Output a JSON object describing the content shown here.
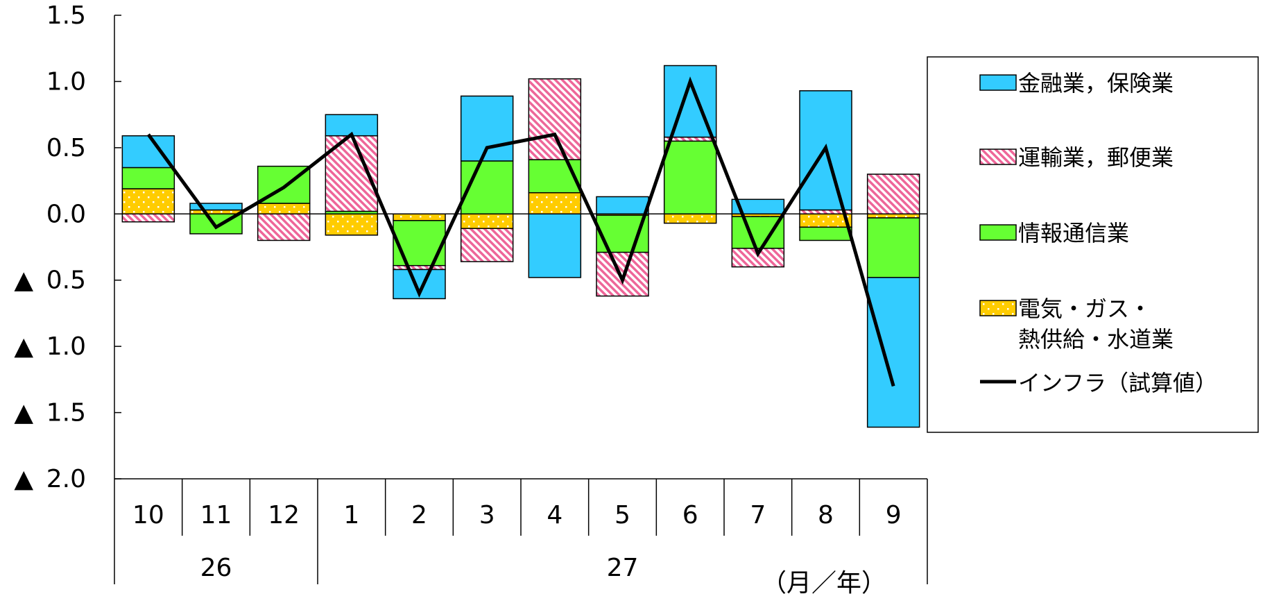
{
  "chart_data": {
    "type": "bar",
    "subtype": "stacked-bar-with-line",
    "y_ticks": [
      {
        "value": 1.5,
        "label": "1.5"
      },
      {
        "value": 1.0,
        "label": "1.0"
      },
      {
        "value": 0.5,
        "label": "0.5"
      },
      {
        "value": 0.0,
        "label": "0.0"
      },
      {
        "value": -0.5,
        "label": "▲ 0.5"
      },
      {
        "value": -1.0,
        "label": "▲ 1.0"
      },
      {
        "value": -1.5,
        "label": "▲ 1.5"
      },
      {
        "value": -2.0,
        "label": "▲ 2.0"
      }
    ],
    "ylim": [
      -2.0,
      1.5
    ],
    "categories": [
      "10",
      "11",
      "12",
      "1",
      "2",
      "3",
      "4",
      "5",
      "6",
      "7",
      "8",
      "9"
    ],
    "year_groups": [
      {
        "label": "26",
        "start": 0,
        "end": 2
      },
      {
        "label": "27",
        "start": 3,
        "end": 11
      }
    ],
    "x_unit_label": "（月／年）",
    "series": [
      {
        "name": "金融業，保険業",
        "kind": "bar",
        "color": "#33ccff",
        "pattern": "solid",
        "values": [
          0.24,
          0.05,
          0.0,
          0.16,
          -0.22,
          0.49,
          -0.48,
          0.13,
          0.54,
          0.11,
          0.9,
          -1.13
        ]
      },
      {
        "name": "運輸業，郵便業",
        "kind": "bar",
        "color": "#ff6699",
        "pattern": "hatch",
        "values": [
          -0.06,
          0.0,
          -0.2,
          0.57,
          -0.03,
          -0.25,
          0.61,
          -0.33,
          0.03,
          -0.14,
          0.03,
          0.3
        ]
      },
      {
        "name": "情報通信業",
        "kind": "bar",
        "color": "#66ff33",
        "pattern": "solid",
        "values": [
          0.16,
          -0.15,
          0.28,
          0.02,
          -0.34,
          0.4,
          0.25,
          -0.28,
          0.55,
          -0.24,
          -0.1,
          -0.45
        ]
      },
      {
        "name": "電気・ガス・熱供給・水道業",
        "kind": "bar",
        "color": "#ffcc00",
        "pattern": "dots",
        "values": [
          0.19,
          0.03,
          0.08,
          -0.16,
          -0.05,
          -0.11,
          0.16,
          -0.01,
          -0.07,
          -0.02,
          -0.1,
          -0.03
        ]
      },
      {
        "name": "インフラ（試算値）",
        "kind": "line",
        "color": "#000000",
        "values": [
          0.6,
          -0.1,
          0.2,
          0.6,
          -0.6,
          0.5,
          0.6,
          -0.5,
          1.0,
          -0.3,
          0.5,
          -1.3
        ]
      }
    ],
    "legend": {
      "position": "right",
      "entries": [
        {
          "lines": [
            "金融業，保険業"
          ],
          "series": 0
        },
        {
          "lines": [
            "運輸業，郵便業"
          ],
          "series": 1
        },
        {
          "lines": [
            "情報通信業"
          ],
          "series": 2
        },
        {
          "lines": [
            "電気・ガス・",
            "熱供給・水道業"
          ],
          "series": 3
        },
        {
          "lines": [
            "インフラ（試算値）"
          ],
          "series": 4
        }
      ]
    },
    "grid": false
  }
}
